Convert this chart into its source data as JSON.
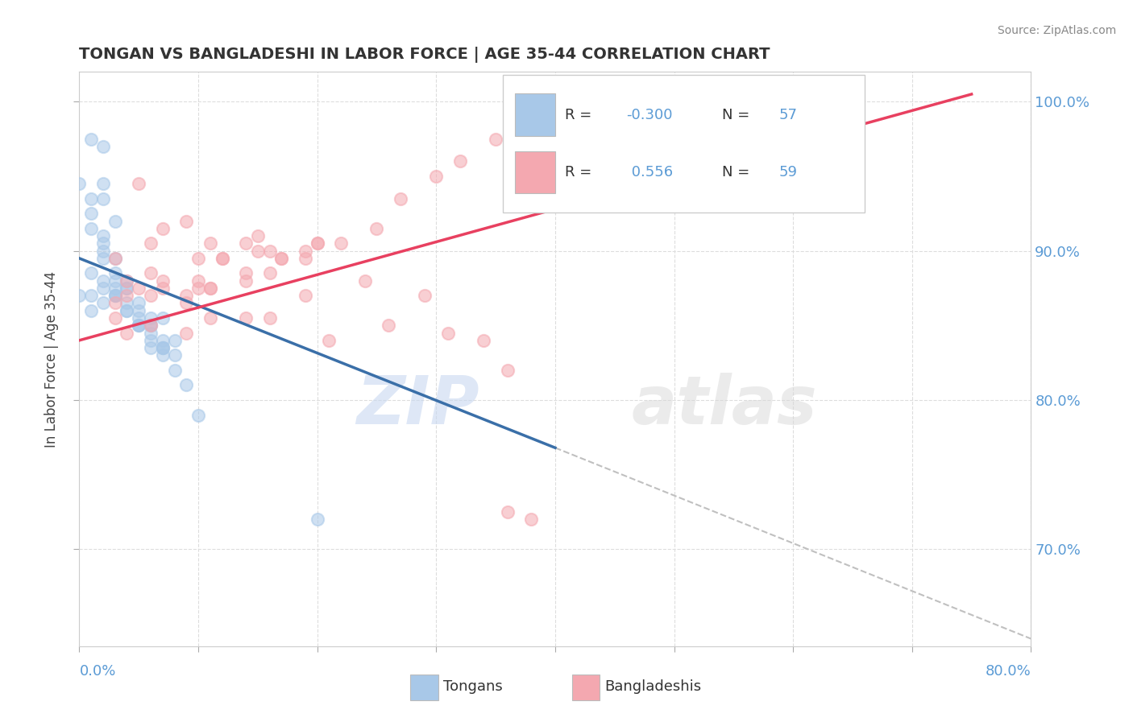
{
  "title": "TONGAN VS BANGLADESHI IN LABOR FORCE | AGE 35-44 CORRELATION CHART",
  "source_text": "Source: ZipAtlas.com",
  "ylabel": "In Labor Force | Age 35-44",
  "legend_tongan_label": "Tongans",
  "legend_bangladeshi_label": "Bangladeshis",
  "right_ytick_labels": [
    "100.0%",
    "90.0%",
    "80.0%",
    "70.0%"
  ],
  "right_ytick_values": [
    1.0,
    0.9,
    0.8,
    0.7
  ],
  "xlim": [
    0.0,
    0.8
  ],
  "ylim": [
    0.635,
    1.02
  ],
  "background_color": "#ffffff",
  "grid_color": "#dddddd",
  "tongan_color": "#a8c8e8",
  "bangladeshi_color": "#f4a8b0",
  "tongan_line_color": "#3a6fa8",
  "bangladeshi_line_color": "#e84060",
  "dashed_line_color": "#c0c0c0",
  "watermark_text": "ZIPatlas",
  "watermark_color": "#d5e5f5",
  "title_color": "#333333",
  "axis_label_color": "#5b9bd5",
  "legend_r_color": "#5b9bd5",
  "tongan_scatter_x": [
    0.01,
    0.02,
    0.0,
    0.01,
    0.02,
    0.02,
    0.01,
    0.03,
    0.02,
    0.01,
    0.02,
    0.02,
    0.03,
    0.02,
    0.03,
    0.03,
    0.03,
    0.04,
    0.03,
    0.04,
    0.04,
    0.05,
    0.04,
    0.05,
    0.05,
    0.06,
    0.05,
    0.06,
    0.06,
    0.07,
    0.06,
    0.07,
    0.07,
    0.08,
    0.07,
    0.08,
    0.0,
    0.01,
    0.01,
    0.01,
    0.02,
    0.02,
    0.02,
    0.03,
    0.03,
    0.04,
    0.04,
    0.05,
    0.05,
    0.06,
    0.06,
    0.07,
    0.07,
    0.08,
    0.09,
    0.1,
    0.2
  ],
  "tongan_scatter_y": [
    0.975,
    0.97,
    0.945,
    0.935,
    0.935,
    0.945,
    0.925,
    0.92,
    0.91,
    0.915,
    0.9,
    0.905,
    0.895,
    0.895,
    0.885,
    0.88,
    0.875,
    0.875,
    0.87,
    0.88,
    0.875,
    0.865,
    0.865,
    0.86,
    0.855,
    0.855,
    0.85,
    0.85,
    0.845,
    0.855,
    0.85,
    0.84,
    0.835,
    0.84,
    0.835,
    0.83,
    0.87,
    0.885,
    0.87,
    0.86,
    0.875,
    0.88,
    0.865,
    0.87,
    0.87,
    0.86,
    0.86,
    0.85,
    0.85,
    0.84,
    0.835,
    0.835,
    0.83,
    0.82,
    0.81,
    0.79,
    0.72
  ],
  "bangladeshi_scatter_x": [
    0.03,
    0.05,
    0.04,
    0.06,
    0.07,
    0.09,
    0.1,
    0.11,
    0.12,
    0.14,
    0.15,
    0.16,
    0.17,
    0.19,
    0.2,
    0.11,
    0.09,
    0.07,
    0.06,
    0.04,
    0.03,
    0.05,
    0.1,
    0.15,
    0.2,
    0.12,
    0.07,
    0.17,
    0.14,
    0.09,
    0.11,
    0.16,
    0.03,
    0.06,
    0.1,
    0.14,
    0.19,
    0.22,
    0.25,
    0.27,
    0.3,
    0.32,
    0.35,
    0.36,
    0.31,
    0.26,
    0.21,
    0.16,
    0.11,
    0.06,
    0.04,
    0.09,
    0.14,
    0.19,
    0.24,
    0.29,
    0.34,
    0.36,
    0.38
  ],
  "bangladeshi_scatter_y": [
    0.895,
    0.945,
    0.87,
    0.905,
    0.915,
    0.92,
    0.895,
    0.905,
    0.895,
    0.905,
    0.91,
    0.9,
    0.895,
    0.9,
    0.905,
    0.875,
    0.865,
    0.875,
    0.885,
    0.88,
    0.865,
    0.875,
    0.88,
    0.9,
    0.905,
    0.895,
    0.88,
    0.895,
    0.885,
    0.87,
    0.875,
    0.885,
    0.855,
    0.87,
    0.875,
    0.88,
    0.895,
    0.905,
    0.915,
    0.935,
    0.95,
    0.96,
    0.975,
    0.82,
    0.845,
    0.85,
    0.84,
    0.855,
    0.855,
    0.85,
    0.845,
    0.845,
    0.855,
    0.87,
    0.88,
    0.87,
    0.84,
    0.725,
    0.72
  ],
  "tongan_line_x0": 0.0,
  "tongan_line_x1": 0.4,
  "tongan_line_y0": 0.895,
  "tongan_line_y1": 0.768,
  "bangladeshi_line_x0": 0.0,
  "bangladeshi_line_x1": 0.75,
  "bangladeshi_line_y0": 0.84,
  "bangladeshi_line_y1": 1.005,
  "dashed_line_x0": 0.4,
  "dashed_line_x1": 0.8,
  "dashed_line_y0": 0.768,
  "dashed_line_y1": 0.64
}
